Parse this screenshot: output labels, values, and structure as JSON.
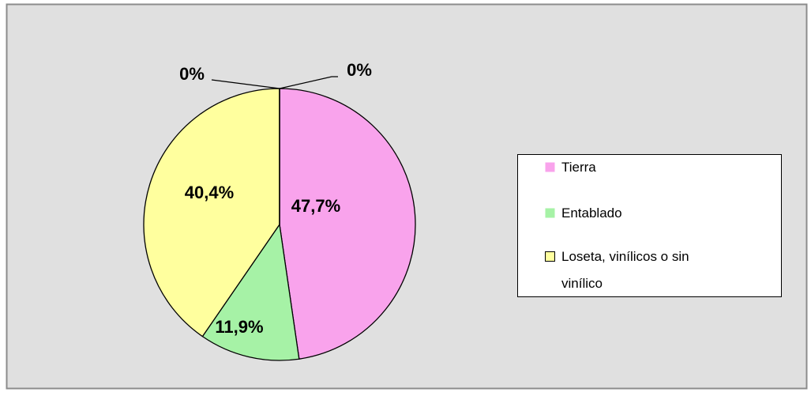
{
  "chart_data": {
    "type": "pie",
    "categories": [
      "Tierra",
      "Entablado",
      "Loseta, vinílicos o sin vinílico",
      null,
      null
    ],
    "values": [
      47.7,
      11.9,
      40.4,
      0,
      0
    ],
    "value_labels": [
      "47,7%",
      "11,9%",
      "40,4%",
      "0%",
      "0%"
    ],
    "colors": [
      "#f9a3ec",
      "#a6f2a6",
      "#ffff9e"
    ],
    "legend": "right"
  }
}
